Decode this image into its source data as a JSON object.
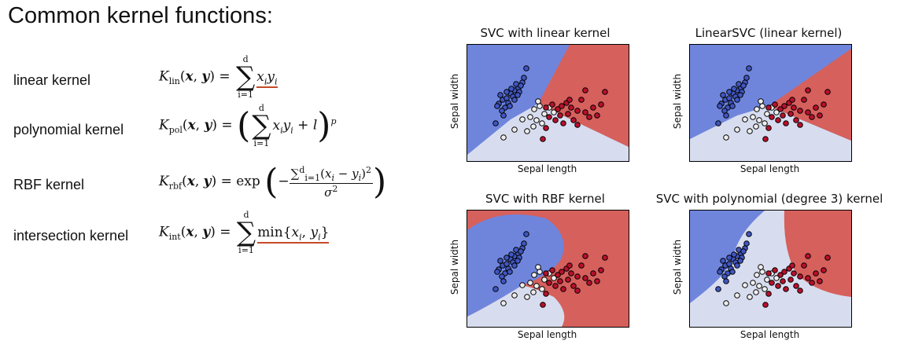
{
  "heading": "Common kernel functions:",
  "kernels": [
    {
      "name": "linear kernel",
      "formula_label": "K_lin(x, y)"
    },
    {
      "name": "polynomial kernel",
      "formula_label": "K_pol(x, y)"
    },
    {
      "name": "RBF kernel",
      "formula_label": "K_rbf(x, y)"
    },
    {
      "name": "intersection kernel",
      "formula_label": "K_int(x, y)"
    }
  ],
  "plots": [
    {
      "title": "SVC with linear kernel",
      "xlabel": "Sepal length",
      "ylabel": "Sepal width"
    },
    {
      "title": "LinearSVC (linear kernel)",
      "xlabel": "Sepal length",
      "ylabel": "Sepal width"
    },
    {
      "title": "SVC with RBF kernel",
      "xlabel": "Sepal length",
      "ylabel": "Sepal width"
    },
    {
      "title": "SVC with polynomial (degree 3) kernel",
      "xlabel": "Sepal length",
      "ylabel": "Sepal width"
    }
  ],
  "colors": {
    "blue_region": "#6f85dc",
    "light_region": "#d7ddef",
    "red_region": "#d6605c",
    "underline": "#c64a28"
  }
}
